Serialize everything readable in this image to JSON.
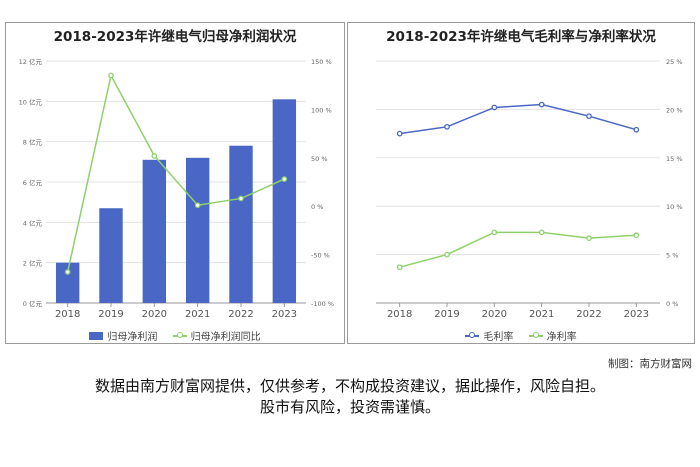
{
  "chart_data": [
    {
      "type": "bar",
      "title": "2018-2023年许继电气归母净利润状况",
      "categories": [
        "2018",
        "2019",
        "2020",
        "2021",
        "2022",
        "2023"
      ],
      "series": [
        {
          "name": "归母净利润",
          "type": "bar",
          "axis": "left",
          "color": "#4a67c5",
          "values": [
            2.0,
            4.7,
            7.1,
            7.2,
            7.8,
            10.1
          ]
        },
        {
          "name": "归母净利润同比",
          "type": "line",
          "axis": "right",
          "color": "#8ed16b",
          "values": [
            -68,
            135,
            52,
            1,
            8,
            28
          ]
        }
      ],
      "y_left": {
        "min": 0,
        "max": 12,
        "ticks": [
          0,
          2,
          4,
          6,
          8,
          10,
          12
        ],
        "tick_labels": [
          "0 亿元",
          "2 亿元",
          "4 亿元",
          "6 亿元",
          "8 亿元",
          "10 亿元",
          "12 亿元"
        ]
      },
      "y_right": {
        "min": -100,
        "max": 150,
        "ticks": [
          -100,
          -50,
          0,
          50,
          100,
          150
        ],
        "tick_labels": [
          "-100 %",
          "-50 %",
          "0 %",
          "50 %",
          "100 %",
          "150 %"
        ]
      },
      "legend": "bottom",
      "grid": true
    },
    {
      "type": "line",
      "title": "2018-2023年许继电气毛利率与净利率状况",
      "categories": [
        "2018",
        "2019",
        "2020",
        "2021",
        "2022",
        "2023"
      ],
      "series": [
        {
          "name": "毛利率",
          "color": "#4a67c5",
          "values": [
            17.5,
            18.2,
            20.2,
            20.5,
            19.3,
            17.9
          ]
        },
        {
          "name": "净利率",
          "color": "#8ed16b",
          "values": [
            3.7,
            5.0,
            7.3,
            7.3,
            6.7,
            7.0
          ]
        }
      ],
      "y_right": {
        "min": 0,
        "max": 25,
        "ticks": [
          0,
          5,
          10,
          15,
          20,
          25
        ],
        "tick_labels": [
          "0 %",
          "5 %",
          "10 %",
          "15 %",
          "20 %",
          "25 %"
        ]
      },
      "legend": "bottom",
      "grid": true
    }
  ],
  "credit": "制图：南方财富网",
  "disclaimer": [
    "数据由南方财富网提供，仅供参考，不构成投资建议，据此操作，风险自担。",
    "股市有风险，投资需谨慎。"
  ]
}
